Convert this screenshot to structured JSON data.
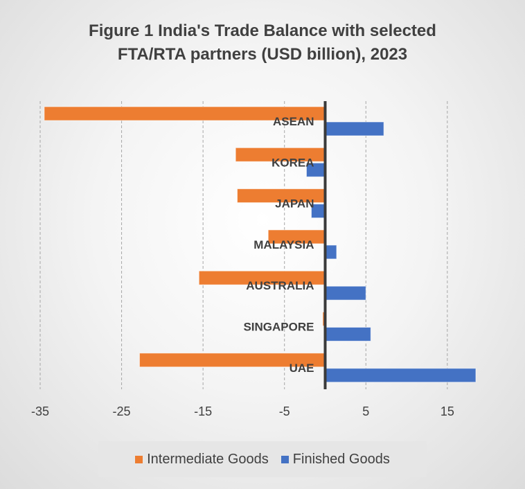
{
  "chart_data": {
    "type": "bar",
    "orientation": "horizontal",
    "title": [
      "Figure 1 India's Trade Balance with selected",
      "FTA/RTA partners (USD billion), 2023"
    ],
    "categories": [
      "ASEAN",
      "KOREA",
      "JAPAN",
      "MALAYSIA",
      "AUSTRALIA",
      "SINGAPORE",
      "UAE"
    ],
    "series": [
      {
        "name": "Intermediate Goods",
        "color": "#ed7d31",
        "values": [
          -34.5,
          -11.0,
          -10.8,
          -7.0,
          -15.5,
          -0.3,
          -22.8
        ]
      },
      {
        "name": "Finished Goods",
        "color": "#4472c4",
        "values": [
          7.2,
          -2.3,
          -1.7,
          1.4,
          5.0,
          5.6,
          18.5
        ]
      }
    ],
    "xlim": [
      -35,
      18.5
    ],
    "xticks": [
      "-35",
      "-25",
      "-15",
      "-5",
      "5",
      "15"
    ],
    "xtick_values": [
      -35,
      -25,
      -15,
      -5,
      5,
      15
    ],
    "grid": "vertical dashed",
    "legend_position": "bottom"
  }
}
